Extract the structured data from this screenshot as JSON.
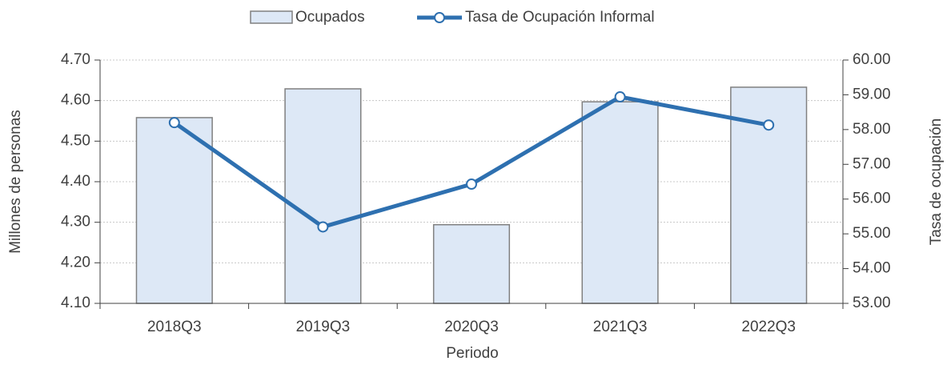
{
  "chart_data": {
    "type": "bar",
    "x_label": "Periodo",
    "y_label": "Millones de personas",
    "y2_label": "Tasa de ocupación",
    "categories": [
      "2018Q3",
      "2019Q3",
      "2020Q3",
      "2021Q3",
      "2022Q3"
    ],
    "series": [
      {
        "name": "Ocupados",
        "type": "bar",
        "color": "#dde8f6",
        "values": [
          4.558,
          4.629,
          4.294,
          4.597,
          4.633
        ]
      },
      {
        "name": "Tasa de Ocupación Informal",
        "type": "line",
        "axis": "y2",
        "color": "#2e70b0",
        "values": [
          58.2,
          55.2,
          56.43,
          58.94,
          58.13
        ]
      }
    ],
    "ylim": [
      4.1,
      4.7
    ],
    "yticks": [
      {
        "value": 4.1,
        "label": "4.10"
      },
      {
        "value": 4.2,
        "label": "4.20"
      },
      {
        "value": 4.3,
        "label": "4.30"
      },
      {
        "value": 4.4,
        "label": "4.40"
      },
      {
        "value": 4.5,
        "label": "4.50"
      },
      {
        "value": 4.6,
        "label": "4.60"
      },
      {
        "value": 4.7,
        "label": "4.70"
      }
    ],
    "y2lim": [
      53,
      60
    ],
    "y2ticks": [
      {
        "value": 53,
        "label": "53.00"
      },
      {
        "value": 54,
        "label": "54.00"
      },
      {
        "value": 55,
        "label": "55.00"
      },
      {
        "value": 56,
        "label": "56.00"
      },
      {
        "value": 57,
        "label": "57.00"
      },
      {
        "value": 58,
        "label": "58.00"
      },
      {
        "value": 59,
        "label": "59.00"
      },
      {
        "value": 60,
        "label": "60.00"
      }
    ],
    "grid": true,
    "legend": "top"
  }
}
